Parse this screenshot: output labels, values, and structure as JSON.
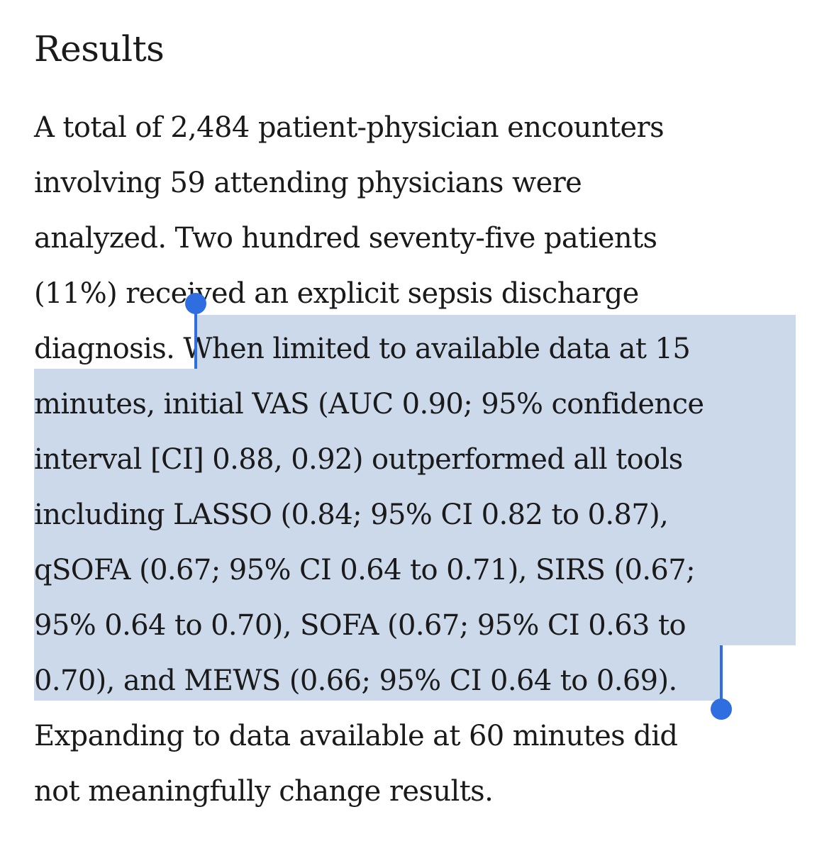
{
  "section": {
    "heading": "Results"
  },
  "paragraph": {
    "lines": [
      "A total of 2,484 patient-physician encounters",
      "involving 59 attending physicians were",
      "analyzed. Two hundred seventy-five patients",
      "(11%) received an explicit sepsis discharge",
      "diagnosis. When limited to available data at 15",
      "minutes, initial VAS (AUC 0.90; 95% confidence",
      "interval [CI] 0.88, 0.92) outperformed all tools",
      "including LASSO (0.84; 95% CI 0.82 to 0.87),",
      "qSOFA (0.67; 95% CI 0.64 to 0.71), SIRS (0.67;",
      "95% 0.64 to 0.70), SOFA (0.67; 95% CI 0.63 to",
      "0.70), and MEWS (0.66; 95% CI 0.64 to 0.69).",
      "Expanding to data available at 60 minutes did",
      "not meaningfully change results."
    ]
  },
  "selection": {
    "text": "When limited to available data at 15 minutes, initial VAS (AUC 0.90; 95% confidence interval [CI] 0.88, 0.92) outperformed all tools including LASSO (0.84; 95% CI 0.82 to 0.87), qSOFA (0.67; 95% CI 0.64 to 0.71), SIRS (0.67; 95% 0.64 to 0.70), SOFA (0.67; 95% CI 0.63 to 0.70), and MEWS (0.66; 95% CI 0.64 to 0.69).",
    "highlight_color": "#ccd9ea",
    "handle_color": "#2f6ee0"
  }
}
